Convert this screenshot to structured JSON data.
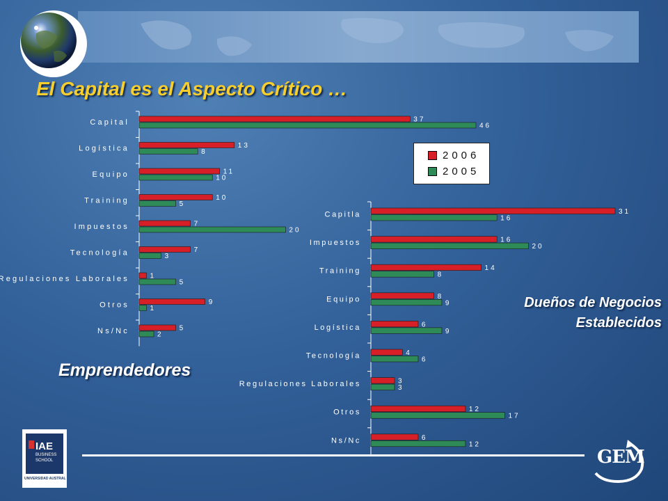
{
  "title": "El Capital es el Aspecto Crítico …",
  "label_emprendedores": "Emprendedores",
  "label_duenos_line1": "Dueños de Negocios",
  "label_duenos_line2": "Establecidos",
  "logo": {
    "name": "IAE",
    "line1": "BUSINESS",
    "line2": "SCHOOL",
    "university": "UNIVERSIDAD AUSTRAL"
  },
  "brand": "GEM",
  "colors": {
    "series_2006": "#d61f26",
    "series_2005": "#2e8a57",
    "title": "#f8ce2c"
  },
  "legend": [
    {
      "label": "2006",
      "color": "#d61f26"
    },
    {
      "label": "2005",
      "color": "#2e8a57"
    }
  ],
  "chart_data": [
    {
      "type": "bar",
      "orientation": "horizontal",
      "categories": [
        "Capital",
        "Logística",
        "Equipo",
        "Training",
        "Impuestos",
        "Tecnología",
        "Regulaciones Laborales",
        "Otros",
        "Ns/Nc"
      ],
      "series": [
        {
          "name": "2006",
          "values": [
            37,
            13,
            11,
            10,
            7,
            7,
            1,
            9,
            5
          ]
        },
        {
          "name": "2005",
          "values": [
            46,
            8,
            10,
            5,
            20,
            3,
            5,
            1,
            2
          ]
        }
      ],
      "xlim": [
        0,
        46
      ]
    },
    {
      "type": "bar",
      "orientation": "horizontal",
      "categories": [
        "Capitla",
        "Impuestos",
        "Training",
        "Equipo",
        "Logística",
        "Tecnología",
        "Regulaciones Laborales",
        "Otros",
        "Ns/Nc"
      ],
      "series": [
        {
          "name": "2006",
          "values": [
            31,
            16,
            14,
            8,
            6,
            4,
            3,
            12,
            6
          ]
        },
        {
          "name": "2005",
          "values": [
            16,
            20,
            8,
            9,
            9,
            6,
            3,
            17,
            12
          ]
        }
      ],
      "xlim": [
        0,
        31
      ]
    }
  ]
}
